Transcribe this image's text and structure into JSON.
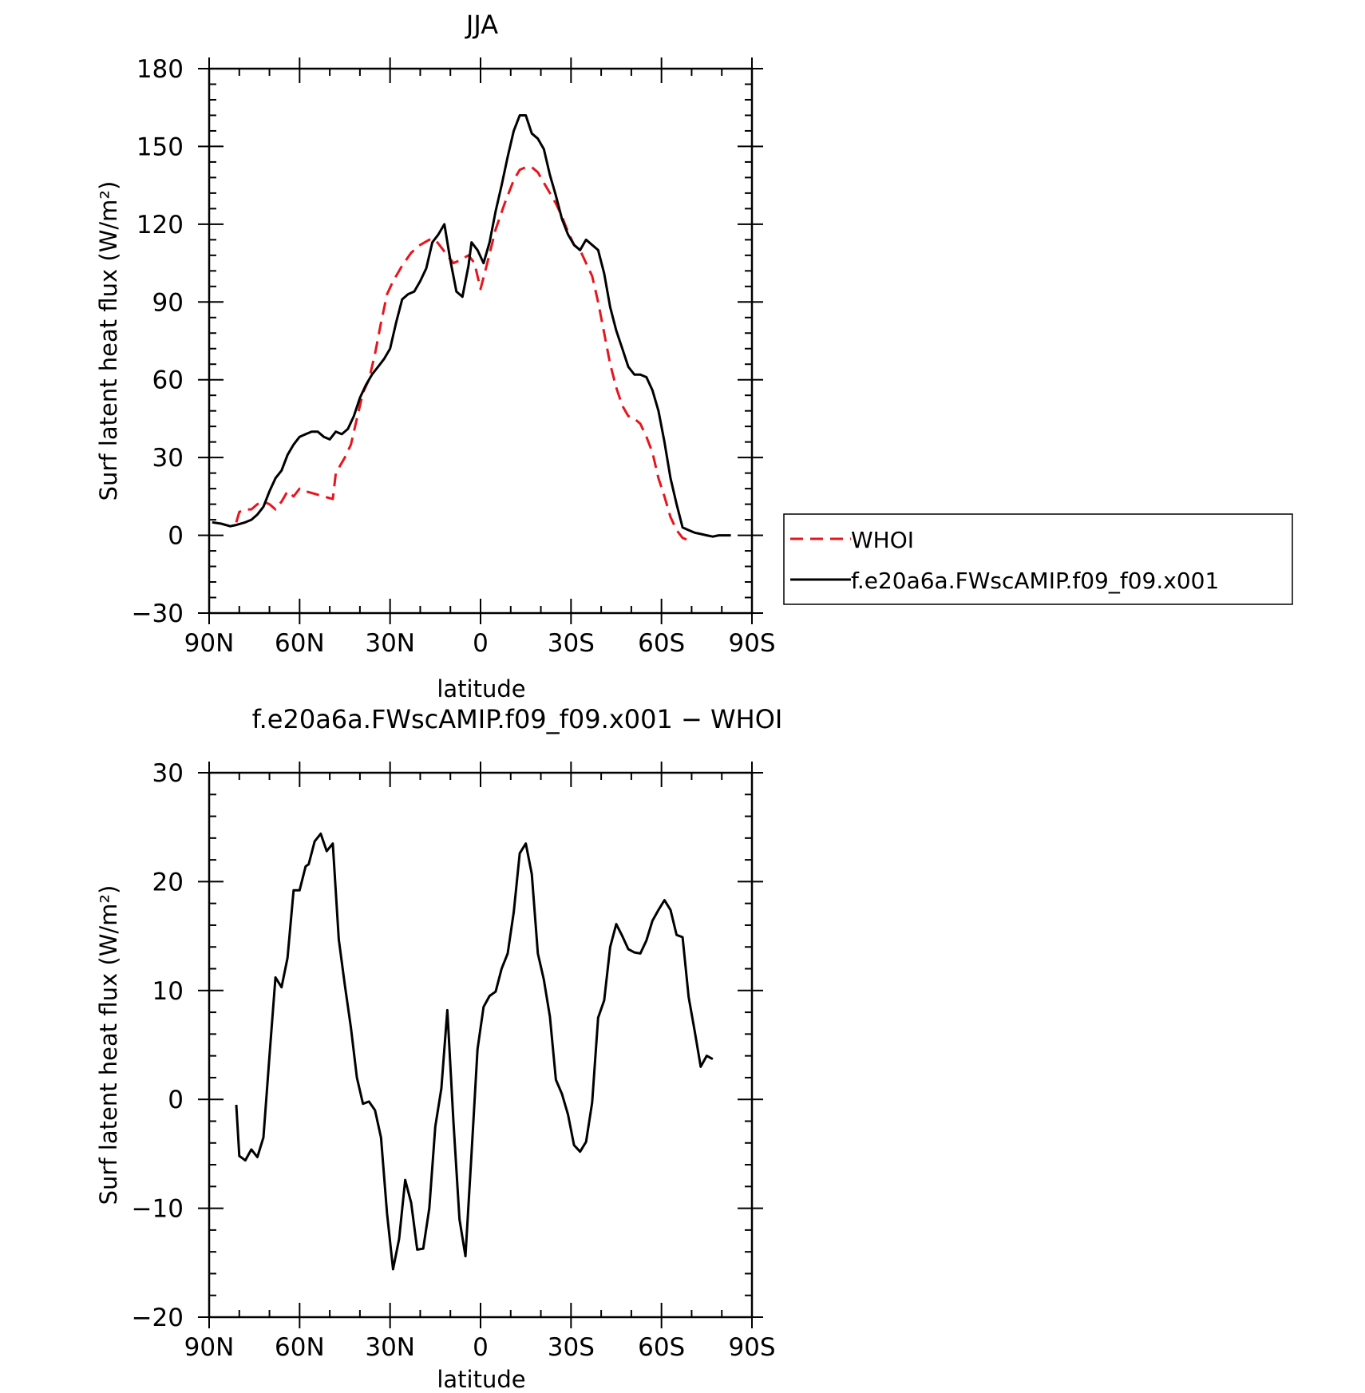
{
  "chart_data": [
    {
      "type": "line",
      "title": "JJA",
      "xlabel": "latitude",
      "ylabel": "Surf latent heat flux (W/m²)",
      "xlim": [
        90,
        -90
      ],
      "ylim": [
        -30,
        180
      ],
      "xticks": [
        {
          "value": 90,
          "label": "90N"
        },
        {
          "value": 60,
          "label": "60N"
        },
        {
          "value": 30,
          "label": "30N"
        },
        {
          "value": 0,
          "label": "0"
        },
        {
          "value": -30,
          "label": "30S"
        },
        {
          "value": -60,
          "label": "60S"
        },
        {
          "value": -90,
          "label": "90S"
        }
      ],
      "yticks": [
        {
          "value": 180,
          "label": "180"
        },
        {
          "value": 150,
          "label": "150"
        },
        {
          "value": 120,
          "label": "120"
        },
        {
          "value": 90,
          "label": "90"
        },
        {
          "value": 60,
          "label": "60"
        },
        {
          "value": 30,
          "label": "30"
        },
        {
          "value": 0,
          "label": "0"
        },
        {
          "value": -30,
          "label": "−30"
        }
      ],
      "legend": {
        "placement": "right",
        "entries": [
          "WHOI",
          "f.e20a6a.FWscAMIP.f09_f09.x001"
        ]
      },
      "series": [
        {
          "name": "WHOI",
          "color": "#e8141b",
          "dash": "dashed",
          "points": [
            [
              81,
              5
            ],
            [
              80,
              9
            ],
            [
              78,
              10
            ],
            [
              76,
              10
            ],
            [
              74,
              12
            ],
            [
              72,
              13
            ],
            [
              70,
              12
            ],
            [
              68,
              10
            ],
            [
              66,
              13
            ],
            [
              64,
              17
            ],
            [
              62,
              15
            ],
            [
              60,
              18
            ],
            [
              58,
              17
            ],
            [
              55,
              16
            ],
            [
              52,
              15
            ],
            [
              49,
              14
            ],
            [
              48,
              24
            ],
            [
              45,
              30
            ],
            [
              43,
              35
            ],
            [
              41,
              45
            ],
            [
              39,
              55
            ],
            [
              37,
              60
            ],
            [
              35,
              70
            ],
            [
              33,
              82
            ],
            [
              31,
              93
            ],
            [
              29,
              98
            ],
            [
              26,
              104
            ],
            [
              23,
              109
            ],
            [
              20,
              112
            ],
            [
              17,
              114
            ],
            [
              15,
              114
            ],
            [
              13,
              111
            ],
            [
              11,
              108
            ],
            [
              9,
              105
            ],
            [
              7,
              106
            ],
            [
              4,
              108
            ],
            [
              2,
              105
            ],
            [
              0,
              95
            ],
            [
              -2,
              104
            ],
            [
              -5,
              118
            ],
            [
              -8,
              128
            ],
            [
              -11,
              137
            ],
            [
              -13,
              141
            ],
            [
              -15,
              142
            ],
            [
              -17,
              142
            ],
            [
              -19,
              140
            ],
            [
              -21,
              136
            ],
            [
              -23,
              132
            ],
            [
              -25,
              128
            ],
            [
              -27,
              123
            ],
            [
              -29,
              117
            ],
            [
              -31,
              112
            ],
            [
              -33,
              110
            ],
            [
              -35,
              105
            ],
            [
              -37,
              100
            ],
            [
              -39,
              90
            ],
            [
              -41,
              78
            ],
            [
              -43,
              66
            ],
            [
              -45,
              57
            ],
            [
              -47,
              50
            ],
            [
              -49,
              46
            ],
            [
              -51,
              45
            ],
            [
              -53,
              43
            ],
            [
              -55,
              38
            ],
            [
              -57,
              32
            ],
            [
              -59,
              22
            ],
            [
              -61,
              15
            ],
            [
              -63,
              7
            ],
            [
              -65,
              2
            ],
            [
              -67,
              -1
            ],
            [
              -69,
              -2
            ]
          ]
        },
        {
          "name": "f.e20a6a.FWscAMIP.f09_f09.x001",
          "color": "#000000",
          "dash": "solid",
          "points": [
            [
              89,
              5
            ],
            [
              86,
              4.5
            ],
            [
              83,
              3.5
            ],
            [
              81,
              4
            ],
            [
              78,
              5
            ],
            [
              76,
              6
            ],
            [
              74,
              8
            ],
            [
              72,
              11
            ],
            [
              70,
              17
            ],
            [
              68,
              22
            ],
            [
              66,
              25
            ],
            [
              64,
              31
            ],
            [
              62,
              35
            ],
            [
              60,
              38
            ],
            [
              58,
              39
            ],
            [
              56,
              40
            ],
            [
              54,
              40
            ],
            [
              52,
              38
            ],
            [
              50,
              37
            ],
            [
              48,
              40
            ],
            [
              46,
              39
            ],
            [
              44,
              41
            ],
            [
              42,
              46
            ],
            [
              40,
              53
            ],
            [
              38,
              58
            ],
            [
              36,
              62
            ],
            [
              34,
              65
            ],
            [
              32,
              68
            ],
            [
              30,
              72
            ],
            [
              28,
              82
            ],
            [
              26,
              91
            ],
            [
              24,
              93
            ],
            [
              22,
              94
            ],
            [
              20,
              98
            ],
            [
              18,
              103
            ],
            [
              16,
              113
            ],
            [
              14,
              116
            ],
            [
              12,
              120
            ],
            [
              10,
              106
            ],
            [
              8,
              94
            ],
            [
              6,
              92
            ],
            [
              4,
              104
            ],
            [
              3,
              113
            ],
            [
              1,
              110
            ],
            [
              -1,
              105
            ],
            [
              -3,
              113
            ],
            [
              -5,
              125
            ],
            [
              -7,
              135
            ],
            [
              -9,
              146
            ],
            [
              -11,
              156
            ],
            [
              -13,
              162
            ],
            [
              -15,
              162
            ],
            [
              -17,
              155
            ],
            [
              -19,
              153
            ],
            [
              -21,
              149
            ],
            [
              -23,
              139
            ],
            [
              -25,
              131
            ],
            [
              -27,
              122
            ],
            [
              -29,
              116
            ],
            [
              -31,
              112
            ],
            [
              -33,
              110
            ],
            [
              -35,
              114
            ],
            [
              -37,
              112
            ],
            [
              -39,
              110
            ],
            [
              -41,
              101
            ],
            [
              -43,
              88
            ],
            [
              -45,
              79
            ],
            [
              -47,
              72
            ],
            [
              -49,
              65
            ],
            [
              -51,
              62
            ],
            [
              -53,
              62
            ],
            [
              -55,
              61
            ],
            [
              -57,
              56
            ],
            [
              -59,
              48
            ],
            [
              -61,
              36
            ],
            [
              -63,
              22
            ],
            [
              -65,
              12
            ],
            [
              -67,
              3
            ],
            [
              -69,
              2
            ],
            [
              -71,
              1
            ],
            [
              -73,
              0.5
            ],
            [
              -75,
              0
            ],
            [
              -77,
              -0.5
            ],
            [
              -79,
              0
            ],
            [
              -81,
              0
            ],
            [
              -83,
              0
            ]
          ]
        }
      ]
    },
    {
      "type": "line",
      "title": "f.e20a6a.FWscAMIP.f09_f09.x001 − WHOI",
      "xlabel": "latitude",
      "ylabel": "Surf latent heat flux (W/m²)",
      "xlim": [
        90,
        -90
      ],
      "ylim": [
        -20,
        30
      ],
      "xticks": [
        {
          "value": 90,
          "label": "90N"
        },
        {
          "value": 60,
          "label": "60N"
        },
        {
          "value": 30,
          "label": "30N"
        },
        {
          "value": 0,
          "label": "0"
        },
        {
          "value": -30,
          "label": "30S"
        },
        {
          "value": -60,
          "label": "60S"
        },
        {
          "value": -90,
          "label": "90S"
        }
      ],
      "yticks": [
        {
          "value": 30,
          "label": "30"
        },
        {
          "value": 20,
          "label": "20"
        },
        {
          "value": 10,
          "label": "10"
        },
        {
          "value": 0,
          "label": "0"
        },
        {
          "value": -10,
          "label": "−10"
        },
        {
          "value": -20,
          "label": "−20"
        }
      ],
      "series": [
        {
          "color": "#000000",
          "dash": "solid",
          "points": [
            [
              81,
              -0.5
            ],
            [
              80,
              -5.2
            ],
            [
              78,
              -5.6
            ],
            [
              76,
              -4.6
            ],
            [
              74,
              -5.3
            ],
            [
              72,
              -3.5
            ],
            [
              70,
              4
            ],
            [
              68,
              11.2
            ],
            [
              66,
              10.3
            ],
            [
              64,
              13
            ],
            [
              62,
              19.2
            ],
            [
              60,
              19.2
            ],
            [
              58,
              21.4
            ],
            [
              57,
              21.6
            ],
            [
              55,
              23.7
            ],
            [
              53,
              24.4
            ],
            [
              51,
              22.8
            ],
            [
              49,
              23.5
            ],
            [
              47,
              14.7
            ],
            [
              45,
              10.5
            ],
            [
              43,
              6.6
            ],
            [
              41,
              2
            ],
            [
              39,
              -0.4
            ],
            [
              37,
              -0.2
            ],
            [
              35,
              -1
            ],
            [
              33,
              -3.5
            ],
            [
              31,
              -10.5
            ],
            [
              29,
              -15.6
            ],
            [
              27,
              -12.8
            ],
            [
              25,
              -7.4
            ],
            [
              23,
              -9.5
            ],
            [
              21,
              -13.8
            ],
            [
              19,
              -13.7
            ],
            [
              17,
              -10
            ],
            [
              15,
              -2.5
            ],
            [
              13,
              1
            ],
            [
              11,
              8.2
            ],
            [
              9,
              -2
            ],
            [
              7,
              -11
            ],
            [
              5,
              -14.4
            ],
            [
              3,
              -5
            ],
            [
              1,
              4.6
            ],
            [
              -1,
              8.5
            ],
            [
              -3,
              9.5
            ],
            [
              -5,
              9.9
            ],
            [
              -7,
              12
            ],
            [
              -9,
              13.4
            ],
            [
              -11,
              17.2
            ],
            [
              -13,
              22.6
            ],
            [
              -15,
              23.5
            ],
            [
              -17,
              20.7
            ],
            [
              -19,
              13.4
            ],
            [
              -21,
              11
            ],
            [
              -23,
              7.6
            ],
            [
              -25,
              1.8
            ],
            [
              -27,
              0.5
            ],
            [
              -29,
              -1.4
            ],
            [
              -31,
              -4.2
            ],
            [
              -33,
              -4.8
            ],
            [
              -35,
              -3.9
            ],
            [
              -37,
              -0.3
            ],
            [
              -39,
              7.5
            ],
            [
              -41,
              9.1
            ],
            [
              -43,
              14
            ],
            [
              -45,
              16.1
            ],
            [
              -47,
              15
            ],
            [
              -49,
              13.8
            ],
            [
              -51,
              13.5
            ],
            [
              -53,
              13.4
            ],
            [
              -55,
              14.6
            ],
            [
              -57,
              16.4
            ],
            [
              -59,
              17.4
            ],
            [
              -61,
              18.3
            ],
            [
              -63,
              17.4
            ],
            [
              -65,
              15.1
            ],
            [
              -67,
              14.9
            ],
            [
              -69,
              9.4
            ],
            [
              -71,
              6.3
            ],
            [
              -73,
              3
            ],
            [
              -75,
              4
            ],
            [
              -77,
              3.7
            ]
          ]
        }
      ]
    }
  ]
}
